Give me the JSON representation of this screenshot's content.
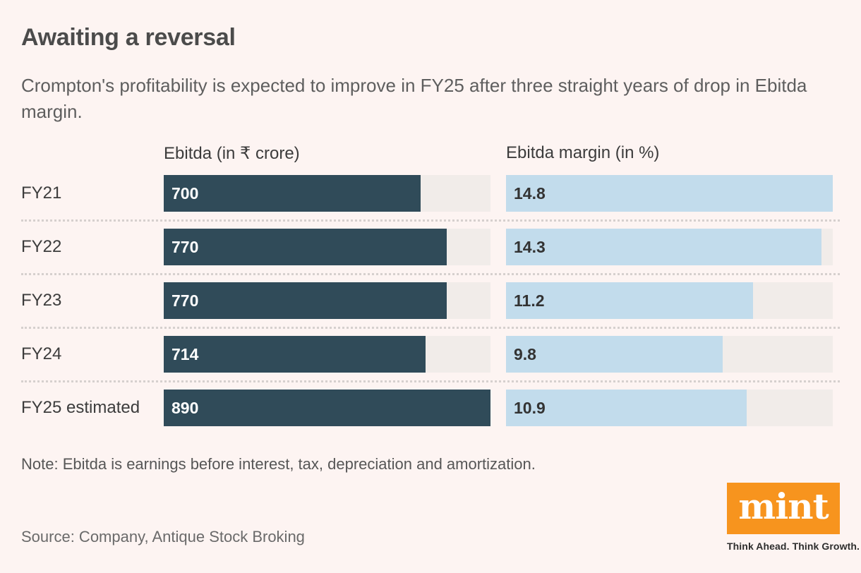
{
  "page": {
    "title": "Awaiting a reversal",
    "subtitle": "Crompton's profitability is expected to improve in FY25 after three straight years of drop in Ebitda margin.",
    "note": "Note: Ebitda is earnings before interest, tax, depreciation and amortization.",
    "source": "Source: Company, Antique Stock Broking"
  },
  "branding": {
    "logo_text": "mint",
    "tagline": "Think Ahead. Think Growth.",
    "logo_bg_color": "#f7941e",
    "logo_text_color": "#ffffff"
  },
  "chart_data": {
    "type": "bar",
    "orientation": "horizontal",
    "categories": [
      "FY21",
      "FY22",
      "FY23",
      "FY24",
      "FY25 estimated"
    ],
    "series": [
      {
        "name": "Ebitda (in ₹ crore)",
        "values": [
          700,
          770,
          770,
          714,
          890
        ],
        "axis_max": 890,
        "decimals": 0,
        "bar_color": "#304b59",
        "value_color": "#ffffff"
      },
      {
        "name": "Ebitda margin (in %)",
        "values": [
          14.8,
          14.3,
          11.2,
          9.8,
          10.9
        ],
        "axis_max": 14.8,
        "decimals": 1,
        "bar_color": "#c2dcec",
        "value_color": "#333333"
      }
    ],
    "track_color": "#f1ece9",
    "value_labels_inside": true,
    "grid": false,
    "legend_position": "column-headers"
  },
  "colors": {
    "background": "#fdf4f2",
    "title": "#4b4b4b",
    "subtitle": "#5e5e5e",
    "row_label": "#3c3c3c",
    "separator": "#d6d0ce"
  }
}
